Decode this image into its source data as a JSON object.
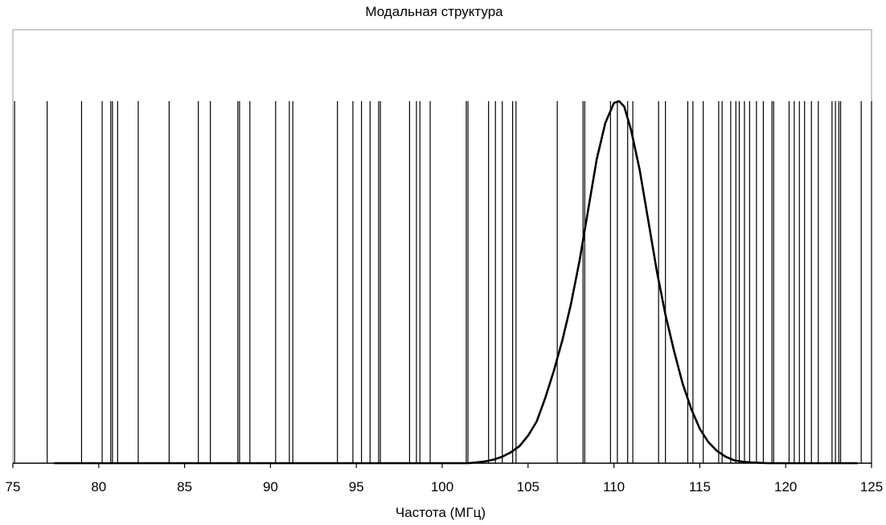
{
  "chart_data": {
    "type": "line",
    "title": "Модальная структура",
    "xlabel": "Частота (МГц)",
    "ylabel": "",
    "xlim": [
      75,
      125
    ],
    "xticks": [
      75,
      80,
      85,
      90,
      95,
      100,
      105,
      110,
      115,
      120,
      125
    ],
    "grid": false,
    "legend": "none",
    "colors": {
      "line": "#000000",
      "frame": "#9a9a9a",
      "background": "#ffffff"
    },
    "series": [
      {
        "type": "vertical-lines",
        "height": 1.0,
        "x": [
          75.1,
          77.0,
          79.0,
          80.2,
          80.7,
          80.8,
          81.1,
          82.3,
          84.1,
          85.8,
          86.5,
          88.1,
          88.2,
          88.8,
          90.3,
          91.1,
          91.3,
          93.9,
          94.8,
          95.3,
          95.8,
          96.3,
          96.4,
          98.1,
          98.5,
          98.7,
          99.3,
          101.4,
          101.5,
          102.7,
          103.1,
          103.5,
          104.1,
          104.3,
          106.7,
          108.2,
          108.3,
          109.8,
          110.2,
          110.8,
          111.1,
          112.6,
          113.0,
          114.3,
          114.6,
          115.2,
          116.1,
          116.3,
          116.8,
          117.1,
          117.3,
          117.6,
          117.9,
          118.3,
          118.7,
          119.2,
          119.3,
          120.2,
          120.5,
          120.8,
          121.1,
          121.5,
          121.9,
          122.7,
          122.9,
          123.1,
          123.2,
          124.4,
          125.0
        ]
      },
      {
        "type": "curve",
        "x": [
          77.4,
          100.0,
          101.5,
          102.0,
          102.5,
          103.0,
          103.5,
          104.0,
          104.5,
          105.0,
          105.5,
          106.0,
          106.5,
          107.0,
          107.5,
          108.0,
          108.5,
          109.0,
          109.5,
          110.0,
          110.3,
          110.6,
          111.0,
          111.5,
          112.0,
          112.5,
          113.0,
          113.5,
          114.0,
          114.5,
          115.0,
          115.5,
          116.0,
          116.5,
          117.0,
          117.5,
          118.0,
          118.5,
          119.0,
          124.2
        ],
        "y": [
          0.0,
          0.0,
          0.0,
          0.002,
          0.005,
          0.01,
          0.018,
          0.03,
          0.047,
          0.076,
          0.115,
          0.18,
          0.255,
          0.34,
          0.44,
          0.56,
          0.7,
          0.84,
          0.94,
          0.995,
          1.0,
          0.985,
          0.92,
          0.81,
          0.67,
          0.53,
          0.41,
          0.31,
          0.22,
          0.15,
          0.095,
          0.058,
          0.034,
          0.018,
          0.008,
          0.004,
          0.002,
          0.001,
          0.0,
          0.0
        ]
      }
    ]
  }
}
